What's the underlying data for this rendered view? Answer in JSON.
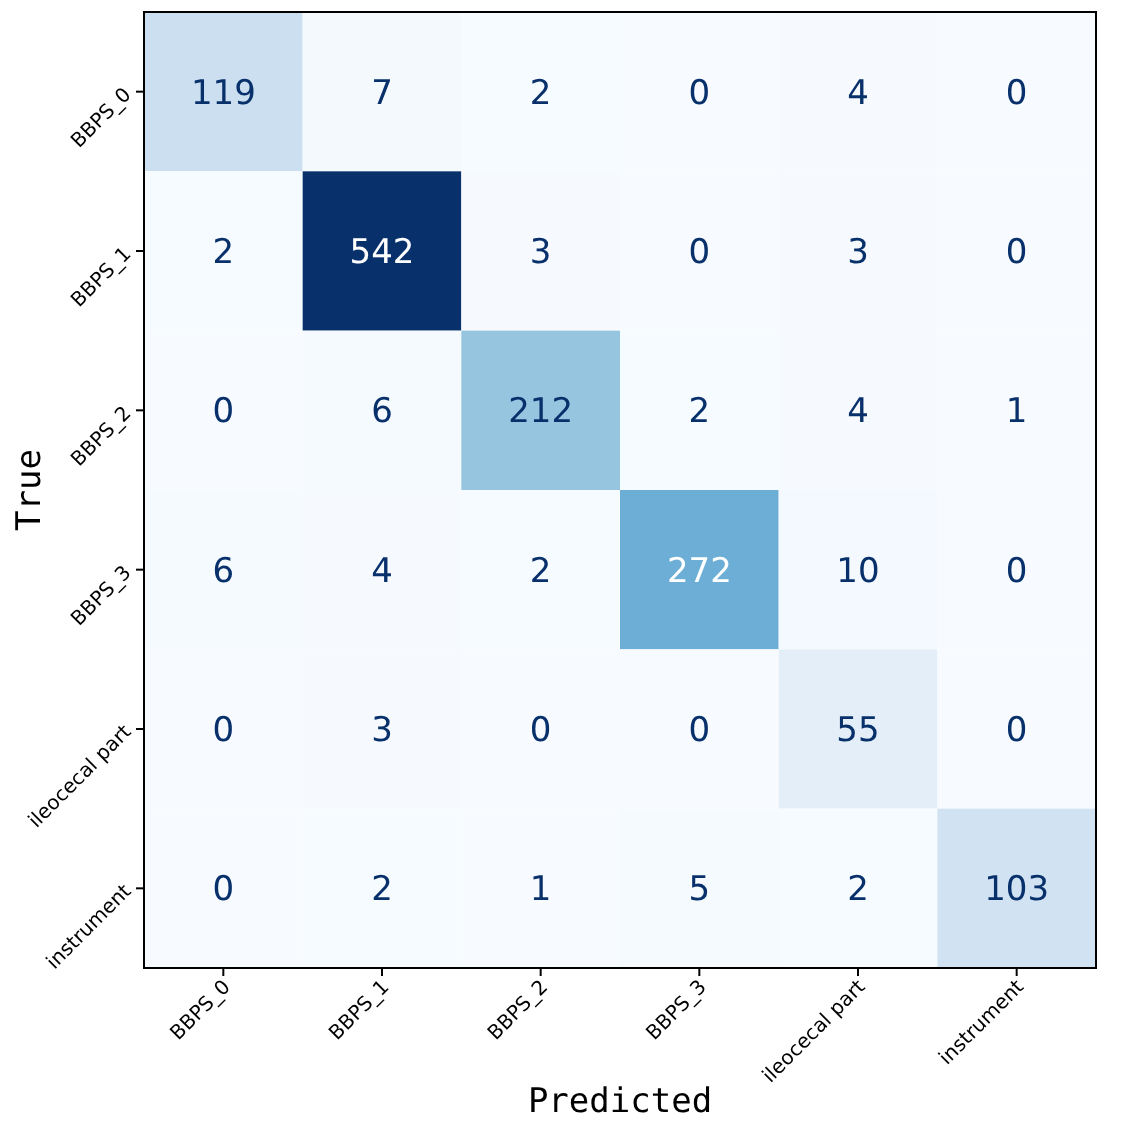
{
  "chart_data": {
    "type": "heatmap",
    "xlabel": "Predicted",
    "ylabel": "True",
    "categories": [
      "BBPS_0",
      "BBPS_1",
      "BBPS_2",
      "BBPS_3",
      "ileocecal part",
      "instrument"
    ],
    "y_categories": [
      "BBPS_0",
      "BBPS_1",
      "BBPS_2",
      "BBPS_3",
      "ileocecal part",
      "instrument"
    ],
    "cells": [
      [
        119,
        7,
        2,
        0,
        4,
        0
      ],
      [
        2,
        542,
        3,
        0,
        3,
        0
      ],
      [
        0,
        6,
        212,
        2,
        4,
        1
      ],
      [
        6,
        4,
        2,
        272,
        10,
        0
      ],
      [
        0,
        3,
        0,
        0,
        55,
        0
      ],
      [
        0,
        2,
        1,
        5,
        2,
        103
      ]
    ],
    "data_labels": true
  }
}
